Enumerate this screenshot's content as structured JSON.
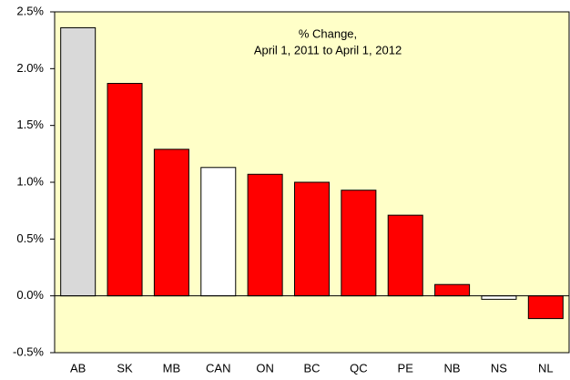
{
  "chart_data": {
    "type": "bar",
    "title": [
      "% Change,",
      "April 1, 2011 to April 1, 2012"
    ],
    "categories": [
      "AB",
      "SK",
      "MB",
      "CAN",
      "ON",
      "BC",
      "QC",
      "PE",
      "NB",
      "NS",
      "NL"
    ],
    "values": [
      2.36,
      1.87,
      1.29,
      1.13,
      1.07,
      1.0,
      0.93,
      0.71,
      0.1,
      -0.03,
      -0.2
    ],
    "colors": [
      "#d9d9d9",
      "#ff0000",
      "#ff0000",
      "#ffffff",
      "#ff0000",
      "#ff0000",
      "#ff0000",
      "#ff0000",
      "#ff0000",
      "#ffffff",
      "#ff0000"
    ],
    "ylim": [
      -0.5,
      2.5
    ],
    "yticks": [
      {
        "value": -0.5,
        "label": "-0.5%"
      },
      {
        "value": 0,
        "label": "0.0%"
      },
      {
        "value": 0.5,
        "label": "0.5%"
      },
      {
        "value": 1,
        "label": "1.0%"
      },
      {
        "value": 1.5,
        "label": "1.5%"
      },
      {
        "value": 2,
        "label": "2.0%"
      },
      {
        "value": 2.5,
        "label": "2.5%"
      }
    ],
    "background": "#ffffc8"
  }
}
